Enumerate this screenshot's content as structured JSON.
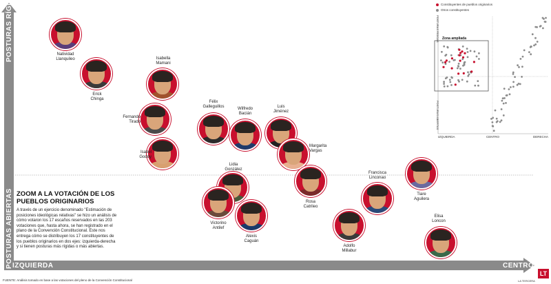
{
  "chart_data": {
    "type": "scatter",
    "title": "ZOOM A LA VOTACIÓN DE LOS PUEBLOS ORIGINARIOS",
    "xlabel_left": "IZQUIERDA",
    "xlabel_right": "CENTRO",
    "ylabel_top": "POSTURAS RÍGIDAS",
    "ylabel_bottom": "POSTURAS ABIERTAS",
    "points": [
      {
        "label": "Natividad\nLlanquileo"
      },
      {
        "label": "Erick\nChinga"
      },
      {
        "label": "Isabella\nMamani"
      },
      {
        "label": "Fernando\nTirado"
      },
      {
        "label": "Isabel\nGodoy"
      },
      {
        "label": "Félix\nGalleguillos"
      },
      {
        "label": "Wilfredo\nBacián"
      },
      {
        "label": "Luis\nJiménez"
      },
      {
        "label": "Margarita\nVargas"
      },
      {
        "label": "Lidia\nGonzález"
      },
      {
        "label": "Victorino\nAntilef"
      },
      {
        "label": "Alexis\nCaguán"
      },
      {
        "label": "Rosa\nCatrileo"
      },
      {
        "label": "Francisca\nLinconao"
      },
      {
        "label": "Adolfo\nMillabur"
      },
      {
        "label": "Tiare\nAguilera"
      },
      {
        "label": "Elisa\nLoncon"
      }
    ]
  },
  "text": {
    "heading": "ZOOM A LA VOTACIÓN DE LOS PUEBLOS ORIGINARIOS",
    "body": "A través de un ejercicio denominado \"Estimación de posiciones ideológicas relativas\" se hizo un análisis de cómo votaron los 17 escaños reservados en las 203 votaciones que, hasta ahora, se han registrado en el plano de la Convención Constitucional. Este nos entrega cómo se distribuyen los 17 constituyentes de los pueblos originarios en dos ejes: izquierda-derecha y si tienen posturas más rígidas o más abiertas.",
    "source": "FUENTE: Análisis tomado en base a las votaciones del pleno de la Convención Constitucional",
    "logo": "LT",
    "logo_caption": "LA TERCERA"
  },
  "inset": {
    "legend_red": "Constituyentes de pueblos originarios",
    "legend_gray": "Otros constituyentes",
    "zone_label": "Zona ampliada",
    "x_left": "IZQUIERDA",
    "x_center": "CENTRO",
    "x_right": "DERECHA",
    "y_top": "POSTURAS RÍGIDAS",
    "y_bottom": "POSTURAS ABIERTAS"
  },
  "colors": {
    "accent": "#c8102e",
    "axis": "#8a8a8a",
    "gray_dots": "#8c8c8c"
  }
}
